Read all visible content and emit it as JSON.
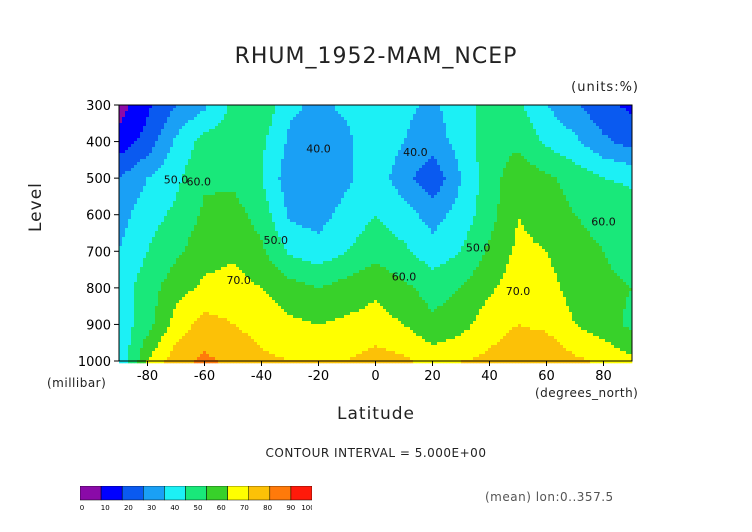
{
  "title": "RHUM_1952-MAM_NCEP",
  "units_label": "(units:%)",
  "y_axis": {
    "label": "Level",
    "unit": "(millibar)",
    "ticks": [
      "300",
      "400",
      "500",
      "600",
      "700",
      "800",
      "900",
      "1000"
    ]
  },
  "x_axis": {
    "label": "Latitude",
    "unit": "(degrees_north)",
    "ticks": [
      "-80",
      "-60",
      "-40",
      "-20",
      "0",
      "20",
      "40",
      "60",
      "80"
    ]
  },
  "contour_interval": "CONTOUR INTERVAL = 5.000E+00",
  "mean_note": "(mean) lon:0..357.5",
  "chart_data": {
    "type": "heatmap",
    "title": "RHUM_1952-MAM_NCEP",
    "xlabel": "Latitude",
    "ylabel": "Level",
    "x_unit": "degrees_north",
    "y_unit": "millibar",
    "xlim": [
      -90,
      90
    ],
    "ylim": [
      1000,
      300
    ],
    "lat": [
      -90,
      -80,
      -70,
      -60,
      -50,
      -40,
      -30,
      -20,
      -10,
      0,
      10,
      20,
      30,
      40,
      50,
      60,
      70,
      80,
      90
    ],
    "levels": [
      300,
      400,
      500,
      600,
      700,
      800,
      900,
      1000
    ],
    "rhum": [
      [
        5,
        18,
        30,
        38,
        52,
        58,
        42,
        38,
        42,
        48,
        42,
        38,
        46,
        54,
        52,
        40,
        32,
        22,
        18
      ],
      [
        14,
        24,
        42,
        54,
        56,
        52,
        38,
        34,
        38,
        47,
        40,
        35,
        44,
        56,
        58,
        48,
        42,
        32,
        26
      ],
      [
        30,
        40,
        48,
        58,
        58,
        50,
        34,
        30,
        38,
        46,
        34,
        22,
        40,
        56,
        66,
        62,
        56,
        50,
        48
      ],
      [
        36,
        46,
        52,
        62,
        64,
        56,
        38,
        36,
        44,
        50,
        44,
        36,
        44,
        56,
        70,
        66,
        60,
        58,
        55
      ],
      [
        40,
        50,
        58,
        66,
        68,
        62,
        48,
        44,
        50,
        56,
        52,
        44,
        50,
        62,
        72,
        70,
        62,
        60,
        56
      ],
      [
        45,
        55,
        66,
        72,
        74,
        70,
        64,
        60,
        64,
        68,
        62,
        56,
        60,
        68,
        76,
        74,
        66,
        62,
        60
      ],
      [
        44,
        56,
        74,
        84,
        80,
        76,
        72,
        70,
        72,
        74,
        70,
        62,
        66,
        76,
        80,
        78,
        70,
        64,
        58
      ],
      [
        40,
        70,
        86,
        92,
        88,
        82,
        80,
        80,
        80,
        84,
        82,
        76,
        80,
        82,
        86,
        88,
        82,
        78,
        72
      ]
    ],
    "contour_labels": [
      "40.0",
      "40.0",
      "50.0",
      "60.0",
      "50.0",
      "50.0",
      "60.0",
      "70.0",
      "70.0",
      "60.0"
    ],
    "colorbar": {
      "ticks": [
        "0",
        "10",
        "20",
        "30",
        "40",
        "50",
        "60",
        "70",
        "80",
        "90",
        "100"
      ],
      "colors": [
        "#8a0aa8",
        "#0000ff",
        "#0a5af0",
        "#1aa0f5",
        "#1cf0f5",
        "#19e87a",
        "#38d12a",
        "#ffff00",
        "#fcc107",
        "#ff7a0a",
        "#ff1a0a"
      ]
    },
    "contour_interval": 5.0
  }
}
